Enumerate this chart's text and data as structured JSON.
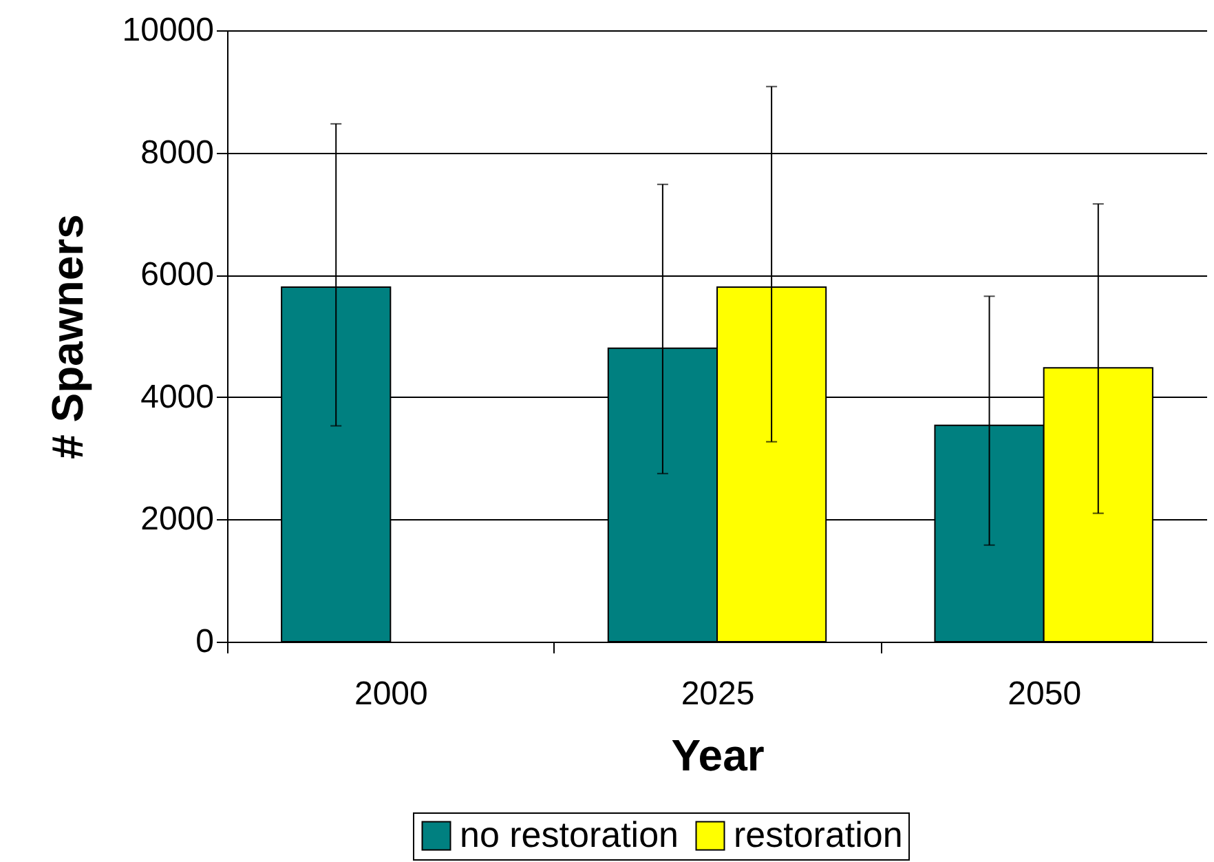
{
  "chart_data": {
    "type": "bar",
    "xlabel": "Year",
    "ylabel": "# Spawners",
    "categories": [
      "2000",
      "2025",
      "2050"
    ],
    "series": [
      {
        "name": "no restoration",
        "color": "#008080",
        "values": [
          5800,
          4800,
          3540
        ],
        "errors": [
          [
            3530,
            8470
          ],
          [
            2750,
            7480
          ],
          [
            1580,
            5650
          ]
        ]
      },
      {
        "name": "restoration",
        "color": "#ffff00",
        "values": [
          null,
          5800,
          4480
        ],
        "errors": [
          null,
          [
            3270,
            9080
          ],
          [
            2100,
            7160
          ]
        ]
      }
    ],
    "ylim": [
      0,
      10000
    ],
    "yticks": [
      0,
      2000,
      4000,
      6000,
      8000,
      10000
    ],
    "grid": "y",
    "legend": "bottom"
  }
}
